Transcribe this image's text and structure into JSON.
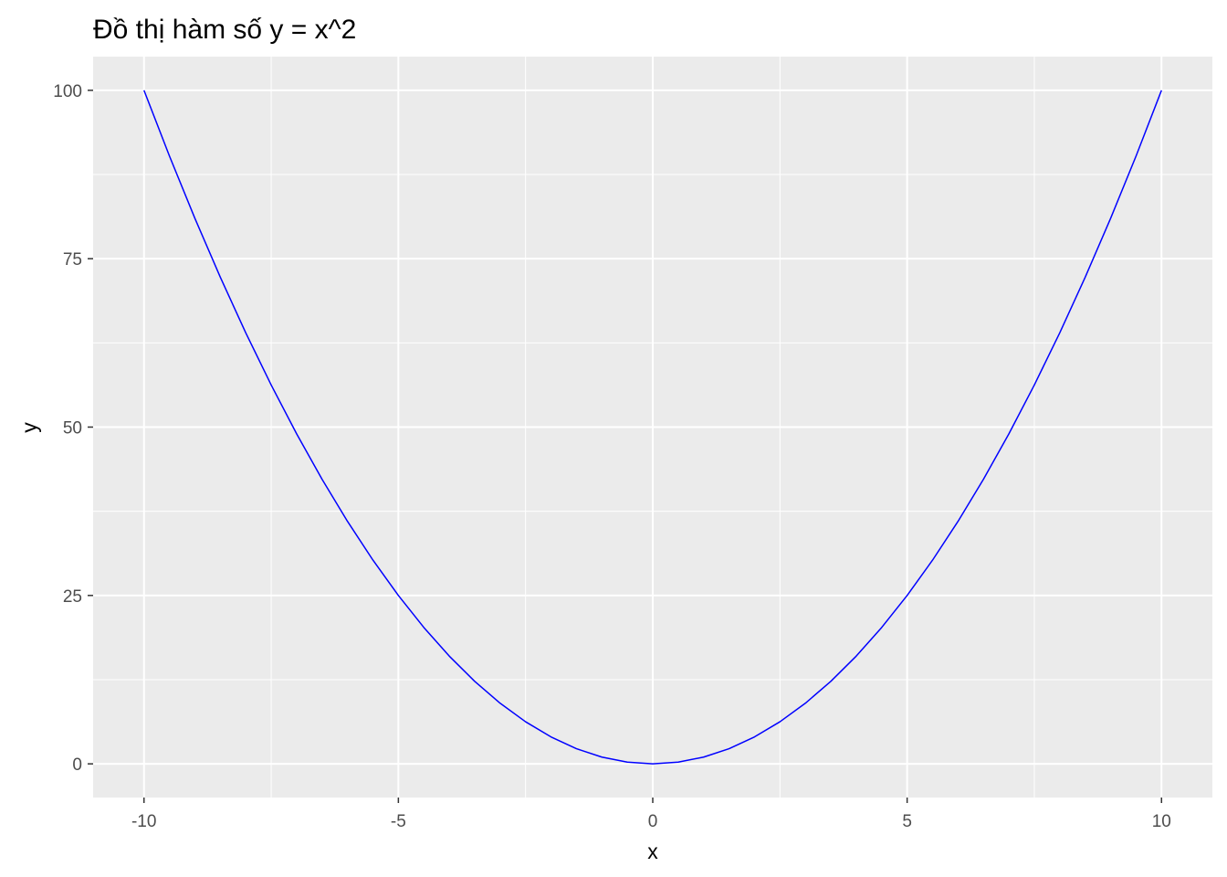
{
  "chart_data": {
    "type": "line",
    "title": "Đồ thị hàm số y = x^2",
    "xlabel": "x",
    "ylabel": "y",
    "xlim": [
      -11,
      11
    ],
    "ylim": [
      -5,
      105
    ],
    "x_ticks": [
      -10,
      -5,
      0,
      5,
      10
    ],
    "x_tick_labels": [
      "-10",
      "-5",
      "0",
      "5",
      "10"
    ],
    "y_ticks": [
      0,
      25,
      50,
      75,
      100
    ],
    "y_tick_labels": [
      "0",
      "25",
      "50",
      "75",
      "100"
    ],
    "x_minor_ticks": [
      -7.5,
      -2.5,
      2.5,
      7.5
    ],
    "y_minor_ticks": [
      12.5,
      37.5,
      62.5,
      87.5
    ],
    "grid": true,
    "panel_background": "#ebebeb",
    "grid_color": "#ffffff",
    "series": [
      {
        "color": "#0000ff",
        "x": [
          -10,
          -9.5,
          -9,
          -8.5,
          -8,
          -7.5,
          -7,
          -6.5,
          -6,
          -5.5,
          -5,
          -4.5,
          -4,
          -3.5,
          -3,
          -2.5,
          -2,
          -1.5,
          -1,
          -0.5,
          0,
          0.5,
          1,
          1.5,
          2,
          2.5,
          3,
          3.5,
          4,
          4.5,
          5,
          5.5,
          6,
          6.5,
          7,
          7.5,
          8,
          8.5,
          9,
          9.5,
          10
        ],
        "y": [
          100,
          90.25,
          81,
          72.25,
          64,
          56.25,
          49,
          42.25,
          36,
          30.25,
          25,
          20.25,
          16,
          12.25,
          9,
          6.25,
          4,
          2.25,
          1,
          0.25,
          0,
          0.25,
          1,
          2.25,
          4,
          6.25,
          9,
          12.25,
          16,
          20.25,
          25,
          30.25,
          36,
          42.25,
          49,
          56.25,
          64,
          72.25,
          81,
          90.25,
          100
        ]
      }
    ]
  }
}
